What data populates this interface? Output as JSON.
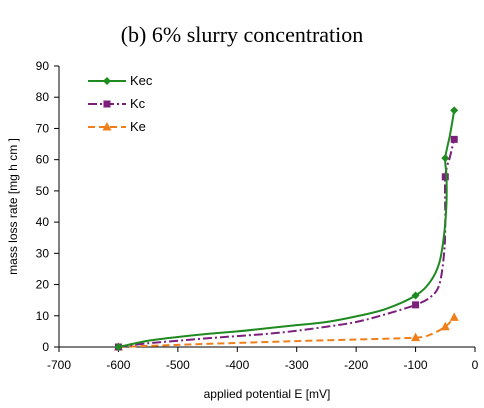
{
  "chart_data": {
    "type": "line",
    "title": "(b) 6% slurry concentration",
    "xlabel": "applied potential E [mV]",
    "ylabel": "mass loss rate [mg h cm ]",
    "xlim": [
      -700,
      0
    ],
    "ylim": [
      0,
      90
    ],
    "xticks": [
      -700,
      -600,
      -500,
      -400,
      -300,
      -200,
      -100,
      0
    ],
    "yticks": [
      0,
      10,
      20,
      30,
      40,
      50,
      60,
      70,
      80,
      90
    ],
    "xtick_labels": [
      "-700",
      "-600",
      "-500",
      "-400",
      "-300",
      "-200",
      "-100",
      "0"
    ],
    "ytick_labels": [
      "0",
      "10",
      "20",
      "30",
      "40",
      "50",
      "60",
      "70",
      "80",
      "90"
    ],
    "grid": false,
    "legend_position": "top-left",
    "series": [
      {
        "name": "Kec",
        "color": "#1f8a1f",
        "line_style": "solid",
        "marker": "diamond",
        "points": [
          [
            -600,
            0
          ],
          [
            -100,
            16.5
          ],
          [
            -50,
            60.5
          ],
          [
            -35,
            75.8
          ]
        ],
        "curve": [
          [
            -600,
            0
          ],
          [
            -550,
            2
          ],
          [
            -500,
            3.2
          ],
          [
            -450,
            4.2
          ],
          [
            -400,
            5
          ],
          [
            -350,
            6
          ],
          [
            -300,
            7
          ],
          [
            -250,
            8
          ],
          [
            -200,
            9.8
          ],
          [
            -150,
            12.2
          ],
          [
            -100,
            16.5
          ],
          [
            -75,
            21
          ],
          [
            -60,
            27
          ],
          [
            -52,
            36
          ],
          [
            -48,
            46
          ],
          [
            -48,
            55
          ],
          [
            -50,
            60.5
          ],
          [
            -42,
            68
          ],
          [
            -35,
            75.8
          ]
        ]
      },
      {
        "name": "Kc",
        "color": "#7b1f7b",
        "line_style": "dashdot",
        "marker": "square",
        "points": [
          [
            -600,
            0
          ],
          [
            -100,
            13.5
          ],
          [
            -50,
            54.5
          ],
          [
            -35,
            66.5
          ]
        ],
        "curve": [
          [
            -600,
            0
          ],
          [
            -550,
            1.2
          ],
          [
            -500,
            2
          ],
          [
            -450,
            2.8
          ],
          [
            -400,
            3.5
          ],
          [
            -350,
            4.2
          ],
          [
            -300,
            5.2
          ],
          [
            -250,
            6.5
          ],
          [
            -200,
            8
          ],
          [
            -150,
            10.5
          ],
          [
            -100,
            13.5
          ],
          [
            -75,
            16
          ],
          [
            -60,
            20
          ],
          [
            -52,
            30
          ],
          [
            -50,
            40
          ],
          [
            -50,
            54.5
          ],
          [
            -42,
            61
          ],
          [
            -35,
            66.5
          ]
        ]
      },
      {
        "name": "Ke",
        "color": "#f07f1a",
        "line_style": "dashed",
        "marker": "triangle",
        "points": [
          [
            -600,
            0
          ],
          [
            -100,
            3
          ],
          [
            -50,
            6.5
          ],
          [
            -35,
            9.5
          ]
        ],
        "curve": [
          [
            -600,
            0
          ],
          [
            -500,
            0.7
          ],
          [
            -400,
            1.3
          ],
          [
            -300,
            1.9
          ],
          [
            -200,
            2.4
          ],
          [
            -100,
            3
          ],
          [
            -75,
            4
          ],
          [
            -50,
            6.5
          ],
          [
            -35,
            9.5
          ]
        ]
      }
    ]
  }
}
